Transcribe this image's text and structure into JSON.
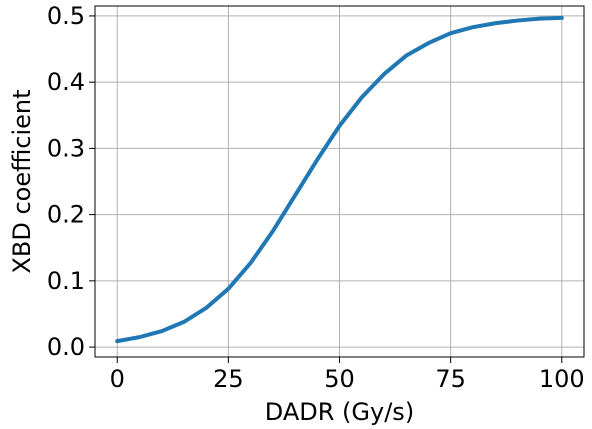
{
  "chart_data": {
    "type": "line",
    "title": "",
    "xlabel": "DADR (Gy/s)",
    "ylabel": "XBD coefficient",
    "xlim": [
      -5,
      105
    ],
    "ylim": [
      -0.015,
      0.515
    ],
    "x_ticks": [
      0,
      25,
      50,
      75,
      100
    ],
    "y_ticks": [
      0.0,
      0.1,
      0.2,
      0.3,
      0.4,
      0.5
    ],
    "x_tick_labels": [
      "0",
      "25",
      "50",
      "75",
      "100"
    ],
    "y_tick_labels": [
      "0.0",
      "0.1",
      "0.2",
      "0.3",
      "0.4",
      "0.5"
    ],
    "grid": true,
    "legend": "none",
    "series": [
      {
        "color": "#1f77b4",
        "x": [
          0,
          5,
          10,
          15,
          20,
          25,
          30,
          35,
          40,
          45,
          50,
          55,
          60,
          65,
          70,
          75,
          80,
          85,
          90,
          95,
          100
        ],
        "y": [
          0.009,
          0.015,
          0.024,
          0.038,
          0.059,
          0.088,
          0.127,
          0.175,
          0.229,
          0.283,
          0.334,
          0.377,
          0.412,
          0.44,
          0.459,
          0.474,
          0.483,
          0.489,
          0.493,
          0.496,
          0.497
        ]
      }
    ]
  }
}
